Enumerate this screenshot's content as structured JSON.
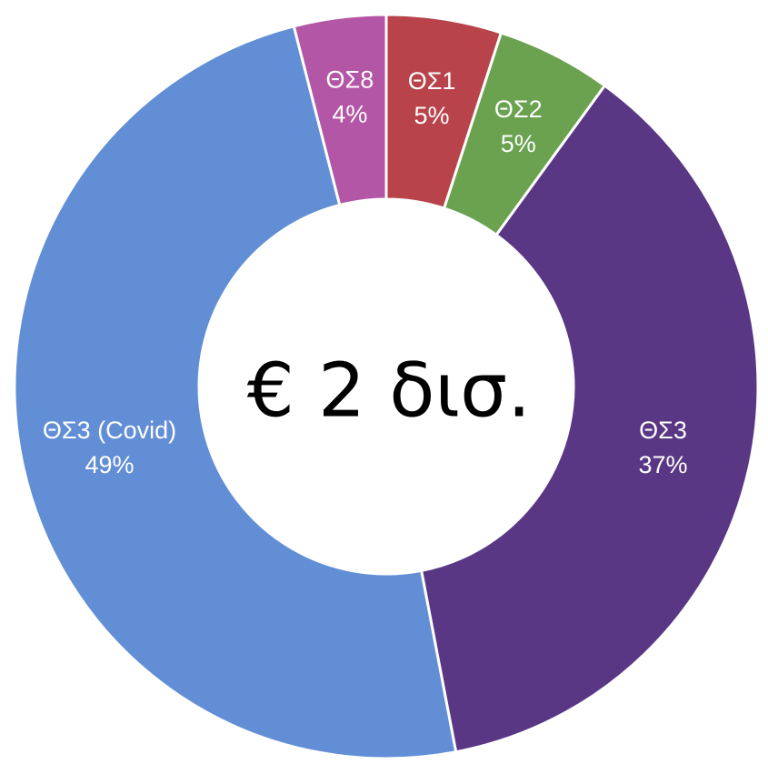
{
  "chart_data": {
    "type": "donut",
    "center_label": "€ 2 δισ.",
    "categories": [
      "ΘΣ1",
      "ΘΣ2",
      "ΘΣ3",
      "ΘΣ3 (Covid)",
      "ΘΣ8"
    ],
    "values": [
      5,
      5,
      37,
      49,
      4
    ],
    "value_labels": [
      "5%",
      "5%",
      "37%",
      "49%",
      "4%"
    ],
    "colors": [
      "#b8434b",
      "#6aa24f",
      "#5a3785",
      "#628ed6",
      "#b456a6"
    ]
  }
}
